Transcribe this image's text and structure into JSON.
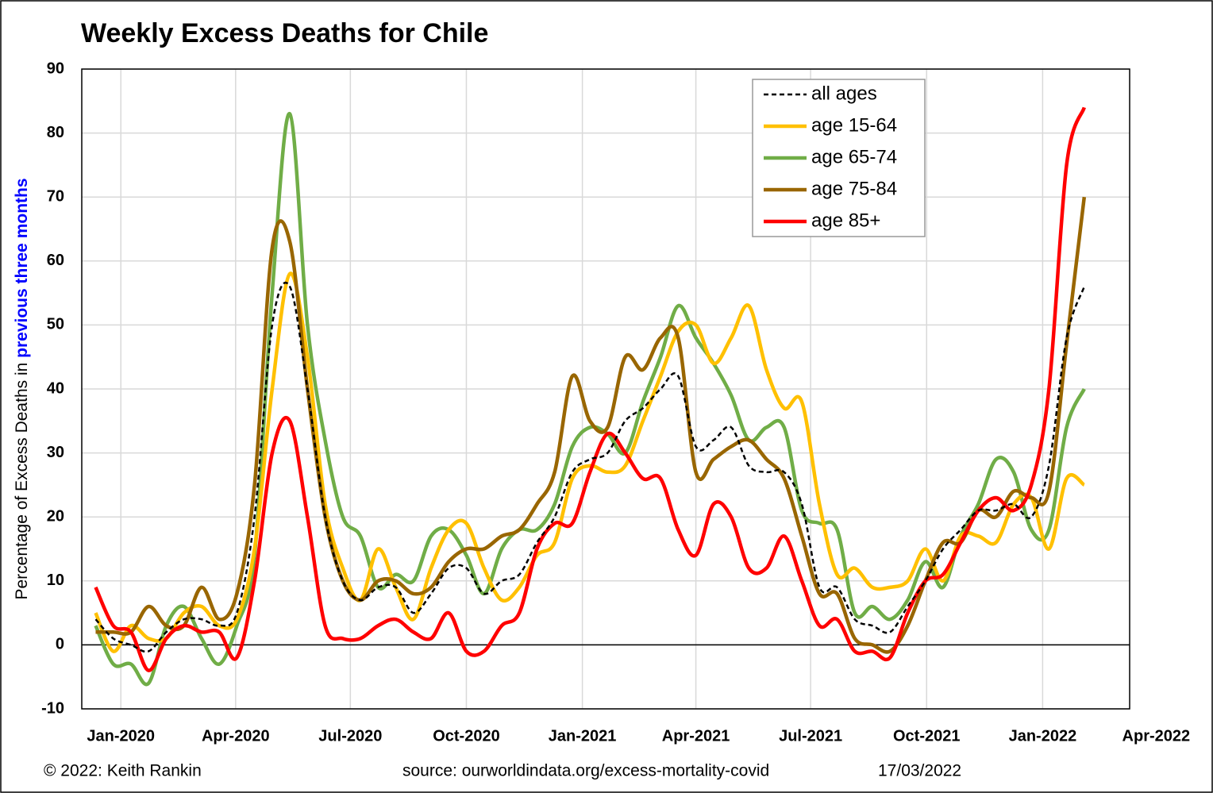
{
  "chart_data": {
    "type": "line",
    "title": "Weekly Excess Deaths for Chile",
    "y_label": [
      "Percentage of Excess Deaths in ",
      "previous three months"
    ],
    "footer": [
      "© 2022: Keith Rankin",
      "source: ourworldindata.org/excess-mortality-covid",
      "17/03/2022"
    ],
    "x": [
      "2019-12-12",
      "2019-12-26",
      "2020-01-09",
      "2020-01-23",
      "2020-02-06",
      "2020-02-20",
      "2020-03-05",
      "2020-03-19",
      "2020-04-02",
      "2020-04-16",
      "2020-04-30",
      "2020-05-14",
      "2020-05-28",
      "2020-06-11",
      "2020-06-25",
      "2020-07-09",
      "2020-07-23",
      "2020-08-06",
      "2020-08-20",
      "2020-09-03",
      "2020-09-17",
      "2020-10-01",
      "2020-10-15",
      "2020-10-29",
      "2020-11-12",
      "2020-11-26",
      "2020-12-10",
      "2020-12-24",
      "2021-01-07",
      "2021-01-21",
      "2021-02-04",
      "2021-02-18",
      "2021-03-04",
      "2021-03-18",
      "2021-04-01",
      "2021-04-15",
      "2021-04-29",
      "2021-05-13",
      "2021-05-27",
      "2021-06-10",
      "2021-06-24",
      "2021-07-08",
      "2021-07-22",
      "2021-08-05",
      "2021-08-19",
      "2021-09-02",
      "2021-09-16",
      "2021-09-30",
      "2021-10-14",
      "2021-10-28",
      "2021-11-11",
      "2021-11-25",
      "2021-12-09",
      "2021-12-23",
      "2022-01-06",
      "2022-01-20",
      "2022-02-03"
    ],
    "series": [
      {
        "name": "all ages",
        "color": "#000000",
        "dashed": true,
        "values": [
          4,
          1,
          0,
          -1,
          2,
          4,
          4,
          3,
          5,
          20,
          50,
          56,
          40,
          20,
          10,
          7,
          9,
          9,
          5,
          8,
          12,
          12,
          8,
          10,
          11,
          16,
          20,
          27,
          29,
          30,
          35,
          37,
          40,
          42,
          31,
          32,
          34,
          28,
          27,
          27,
          22,
          9,
          9,
          4,
          3,
          2,
          6,
          10,
          15,
          18,
          21,
          21,
          22,
          20,
          28,
          48,
          56
        ]
      },
      {
        "name": "age 15-64",
        "color": "#ffc000",
        "values": [
          5,
          -1,
          3,
          1,
          1,
          5,
          6,
          3,
          4,
          15,
          40,
          58,
          45,
          22,
          12,
          7,
          15,
          9,
          4,
          12,
          18,
          19,
          12,
          7,
          9,
          14,
          16,
          26,
          28,
          27,
          28,
          35,
          42,
          49,
          50,
          44,
          48,
          53,
          43,
          37,
          38,
          22,
          11,
          12,
          9,
          9,
          10,
          15,
          10,
          17,
          17,
          16,
          22,
          23,
          15,
          26,
          25
        ]
      },
      {
        "name": "age 65-74",
        "color": "#70ad47",
        "values": [
          3,
          -3,
          -3,
          -6,
          3,
          6,
          1,
          -3,
          3,
          14,
          55,
          83,
          50,
          32,
          20,
          17,
          9,
          11,
          10,
          17,
          18,
          14,
          8,
          15,
          18,
          18,
          22,
          31,
          34,
          33,
          30,
          38,
          45,
          53,
          48,
          44,
          39,
          32,
          34,
          34,
          21,
          19,
          18,
          5,
          6,
          4,
          7,
          13,
          9,
          17,
          22,
          29,
          27,
          18,
          18,
          34,
          40
        ]
      },
      {
        "name": "age 75-84",
        "color": "#996600",
        "values": [
          2,
          2,
          2,
          6,
          3,
          3,
          9,
          4,
          8,
          25,
          62,
          63,
          40,
          20,
          10,
          7,
          10,
          10,
          8,
          9,
          13,
          15,
          15,
          17,
          18,
          22,
          27,
          42,
          35,
          34,
          45,
          43,
          48,
          48,
          27,
          29,
          31,
          32,
          29,
          26,
          17,
          8,
          8,
          1,
          0,
          -1,
          3,
          10,
          16,
          16,
          21,
          20,
          24,
          23,
          24,
          47,
          70
        ]
      },
      {
        "name": "age 85+",
        "color": "#ff0000",
        "values": [
          9,
          3,
          2,
          -4,
          1,
          3,
          2,
          2,
          -2,
          10,
          30,
          35,
          20,
          3,
          1,
          1,
          3,
          4,
          2,
          1,
          5,
          -1,
          -1,
          3,
          5,
          15,
          19,
          19,
          27,
          33,
          30,
          26,
          26,
          18,
          14,
          22,
          20,
          12,
          12,
          17,
          10,
          3,
          4,
          -1,
          -1,
          -2,
          5,
          10,
          11,
          16,
          21,
          23,
          21,
          25,
          40,
          75,
          84
        ]
      }
    ],
    "xlim": [
      "2019-12-01",
      "2022-03-11"
    ],
    "xticks": [
      {
        "value": "2020-01-01",
        "label": "Jan-2020"
      },
      {
        "value": "2020-04-01",
        "label": "Apr-2020"
      },
      {
        "value": "2020-07-01",
        "label": "Jul-2020"
      },
      {
        "value": "2020-10-01",
        "label": "Oct-2020"
      },
      {
        "value": "2021-01-01",
        "label": "Jan-2021"
      },
      {
        "value": "2021-04-01",
        "label": "Apr-2021"
      },
      {
        "value": "2021-07-01",
        "label": "Jul-2021"
      },
      {
        "value": "2021-10-01",
        "label": "Oct-2021"
      },
      {
        "value": "2022-01-01",
        "label": "Jan-2022"
      },
      {
        "value": "2022-04-01",
        "label": "Apr-2022"
      }
    ],
    "ylim": [
      -10,
      90
    ],
    "yticks": [
      -10,
      0,
      10,
      20,
      30,
      40,
      50,
      60,
      70,
      80,
      90
    ],
    "grid": true,
    "legend": "top-right"
  }
}
